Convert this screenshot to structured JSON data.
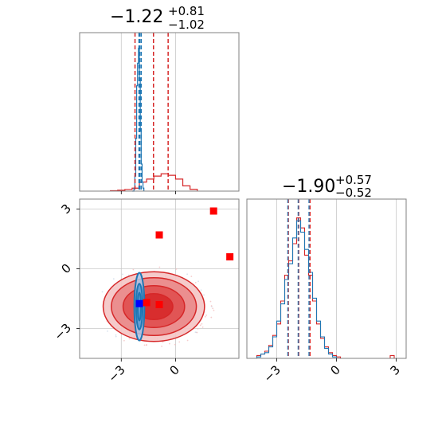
{
  "chart_data": [
    {
      "type": "histogram",
      "panel": "top-left",
      "title": {
        "value": "−1.22",
        "sup": "+0.81",
        "sub": "−1.02"
      },
      "xlim": [
        -5.3,
        3.5
      ],
      "grid": true,
      "quantile_lines": {
        "red": [
          -2.24,
          -1.22,
          -0.41
        ],
        "blue": [
          -2.02,
          -1.98,
          -1.9
        ]
      },
      "series": [
        {
          "color": "#d62728",
          "bins_x": [
            -3.6,
            -3.2,
            -2.8,
            -2.4,
            -2.0,
            -1.6,
            -1.2,
            -0.8,
            -0.4,
            0.0,
            0.4,
            0.8,
            1.2
          ],
          "values": [
            0.003,
            0.006,
            0.011,
            0.02,
            0.06,
            0.08,
            0.1,
            0.115,
            0.105,
            0.08,
            0.035,
            0.012,
            0.0
          ]
        },
        {
          "color": "#1f77b4",
          "bins_x": [
            -2.4,
            -2.3,
            -2.25,
            -2.2,
            -2.15,
            -2.1,
            -2.05,
            -2.0,
            -1.95,
            -1.9,
            -1.85,
            -1.8,
            -1.75
          ],
          "values": [
            0.0,
            0.02,
            0.1,
            0.35,
            0.7,
            0.85,
            0.95,
            0.75,
            0.4,
            0.18,
            0.06,
            0.02,
            0.0
          ]
        }
      ]
    },
    {
      "type": "contour-scatter",
      "panel": "bottom-left",
      "xlim": [
        -5.3,
        3.5
      ],
      "ylim": [
        -4.5,
        3.5
      ],
      "yticks": [
        "3",
        "0",
        "−3"
      ],
      "xticks": [
        "−3",
        "0"
      ],
      "grid": true,
      "red_points": [
        [
          -0.9,
          1.7
        ],
        [
          2.1,
          2.9
        ],
        [
          3.0,
          0.6
        ],
        [
          -0.9,
          -1.8
        ],
        [
          -1.6,
          -1.7
        ]
      ],
      "blue_points": [
        [
          -2.0,
          -1.75
        ]
      ],
      "red_contour": {
        "center": [
          -1.2,
          -1.9
        ],
        "rx": [
          2.8,
          2.35,
          1.7,
          1.05
        ],
        "ry": [
          1.75,
          1.45,
          1.05,
          0.65
        ]
      },
      "blue_contour": {
        "center": [
          -2.0,
          -1.9
        ],
        "rx": [
          0.28,
          0.18,
          0.09
        ],
        "ry": [
          1.7,
          1.15,
          0.7
        ]
      }
    },
    {
      "type": "histogram",
      "panel": "bottom-right",
      "title": {
        "value": "−1.90",
        "sup": "+0.57",
        "sub": "−0.52"
      },
      "xlim": [
        -4.5,
        3.5
      ],
      "xticks": [
        "−3",
        "0",
        "3"
      ],
      "grid": true,
      "quantile_lines": {
        "red": [
          -2.42,
          -1.9,
          -1.33
        ],
        "blue": [
          -2.44,
          -1.92,
          -1.38
        ]
      },
      "series": [
        {
          "color": "#d62728",
          "bins_x": [
            -4.2,
            -4.0,
            -3.8,
            -3.6,
            -3.4,
            -3.2,
            -3.0,
            -2.8,
            -2.6,
            -2.4,
            -2.2,
            -2.0,
            -1.8,
            -1.6,
            -1.4,
            -1.2,
            -1.0,
            -0.8,
            -0.6,
            -0.4,
            -0.2,
            0.0,
            0.2,
            2.7,
            2.9
          ],
          "values": [
            0.0,
            0.02,
            0.03,
            0.05,
            0.09,
            0.16,
            0.24,
            0.4,
            0.58,
            0.68,
            0.8,
            0.98,
            0.91,
            0.72,
            0.58,
            0.4,
            0.24,
            0.14,
            0.08,
            0.04,
            0.02,
            0.01,
            0.0,
            0.02,
            0.0
          ]
        },
        {
          "color": "#1f77b4",
          "bins_x": [
            -4.2,
            -4.0,
            -3.8,
            -3.6,
            -3.4,
            -3.2,
            -3.0,
            -2.8,
            -2.6,
            -2.4,
            -2.2,
            -2.0,
            -1.8,
            -1.6,
            -1.4,
            -1.2,
            -1.0,
            -0.8,
            -0.6,
            -0.4,
            -0.2,
            0.0,
            0.2
          ],
          "values": [
            0.0,
            0.01,
            0.03,
            0.04,
            0.08,
            0.15,
            0.26,
            0.38,
            0.55,
            0.66,
            0.84,
            0.96,
            0.88,
            0.76,
            0.6,
            0.42,
            0.26,
            0.15,
            0.07,
            0.03,
            0.01,
            0.0,
            0.0
          ]
        }
      ]
    }
  ]
}
